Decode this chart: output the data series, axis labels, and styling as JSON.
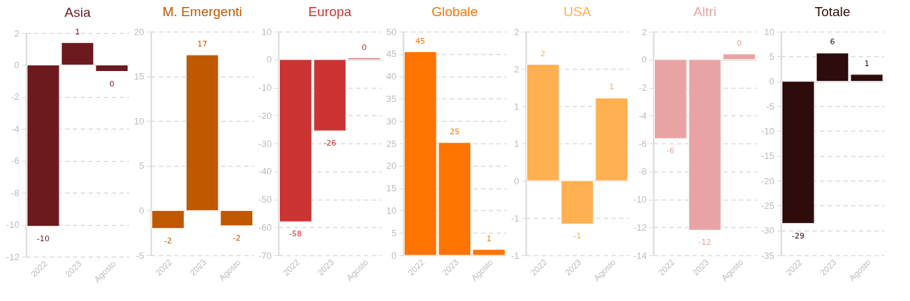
{
  "chart_data": [
    {
      "type": "bar",
      "title": "Asia",
      "categories": [
        "2022",
        "2023",
        "Agosto"
      ],
      "values": [
        -10.1,
        1.4,
        -0.4
      ],
      "color": "#6d1a1e",
      "ylim": [
        -12,
        2
      ],
      "yticks": [
        -12,
        -10,
        -8,
        -6,
        -4,
        -2,
        0,
        2
      ],
      "grid": "y",
      "value_labels": [
        "-10",
        "1",
        "0"
      ]
    },
    {
      "type": "bar",
      "title": "M. Emergenti",
      "categories": [
        "2022",
        "2023",
        "Agosto"
      ],
      "values": [
        -2.0,
        17.4,
        -1.7
      ],
      "color": "#c05800",
      "ylim": [
        -5,
        20
      ],
      "yticks": [
        -5,
        0,
        5,
        10,
        15,
        20
      ],
      "grid": "y",
      "value_labels": [
        "-2",
        "17",
        "-2"
      ]
    },
    {
      "type": "bar",
      "title": "Europa",
      "categories": [
        "2022",
        "2023",
        "Agosto"
      ],
      "values": [
        -58,
        -25.5,
        0.5
      ],
      "color": "#cc3333",
      "ylim": [
        -70,
        10
      ],
      "yticks": [
        -70,
        -60,
        -50,
        -40,
        -30,
        -20,
        -10,
        0,
        10
      ],
      "grid": "y",
      "value_labels": [
        "-58",
        "-26",
        "0"
      ]
    },
    {
      "type": "bar",
      "title": "Globale",
      "categories": [
        "2022",
        "2023",
        "Agosto"
      ],
      "values": [
        45.5,
        25.2,
        1.3
      ],
      "color": "#ff7300",
      "ylim": [
        0,
        50
      ],
      "yticks": [
        0,
        5,
        10,
        15,
        20,
        25,
        30,
        35,
        40,
        45,
        50
      ],
      "grid": "y",
      "value_labels": [
        "45",
        "25",
        "1"
      ]
    },
    {
      "type": "bar",
      "title": "USA",
      "categories": [
        "2022",
        "2023",
        "Agosto"
      ],
      "values": [
        1.56,
        -0.58,
        1.11
      ],
      "color": "#ffb050",
      "ylim": [
        -1,
        2
      ],
      "yticks": [
        -1,
        {
          "value": -0.5,
          "label": "-1"
        },
        0,
        {
          "value": 0.5,
          "label": "1"
        },
        1,
        {
          "value": 1.5,
          "label": "2"
        },
        2
      ],
      "grid": "y",
      "value_labels": [
        "2",
        "-1",
        "1"
      ]
    },
    {
      "type": "bar",
      "title": "Altri",
      "categories": [
        "2022",
        "2023",
        "Agosto"
      ],
      "values": [
        -5.65,
        -12.2,
        0.4
      ],
      "color": "#e8a4a4",
      "ylim": [
        -14,
        2
      ],
      "yticks": [
        -14,
        -12,
        -10,
        -8,
        -6,
        -4,
        -2,
        0,
        2
      ],
      "grid": "y",
      "value_labels": [
        "-6",
        "-12",
        "0"
      ]
    },
    {
      "type": "bar",
      "title": "Totale",
      "categories": [
        "2022",
        "2023",
        "Agosto"
      ],
      "values": [
        -28.6,
        5.7,
        1.4
      ],
      "color": "#2e0c0c",
      "ylim": [
        -35,
        10
      ],
      "yticks": [
        -35,
        -30,
        -25,
        -20,
        -15,
        -10,
        -5,
        0,
        5,
        10
      ],
      "grid": "y",
      "value_labels": [
        "-29",
        "6",
        "1"
      ]
    }
  ]
}
